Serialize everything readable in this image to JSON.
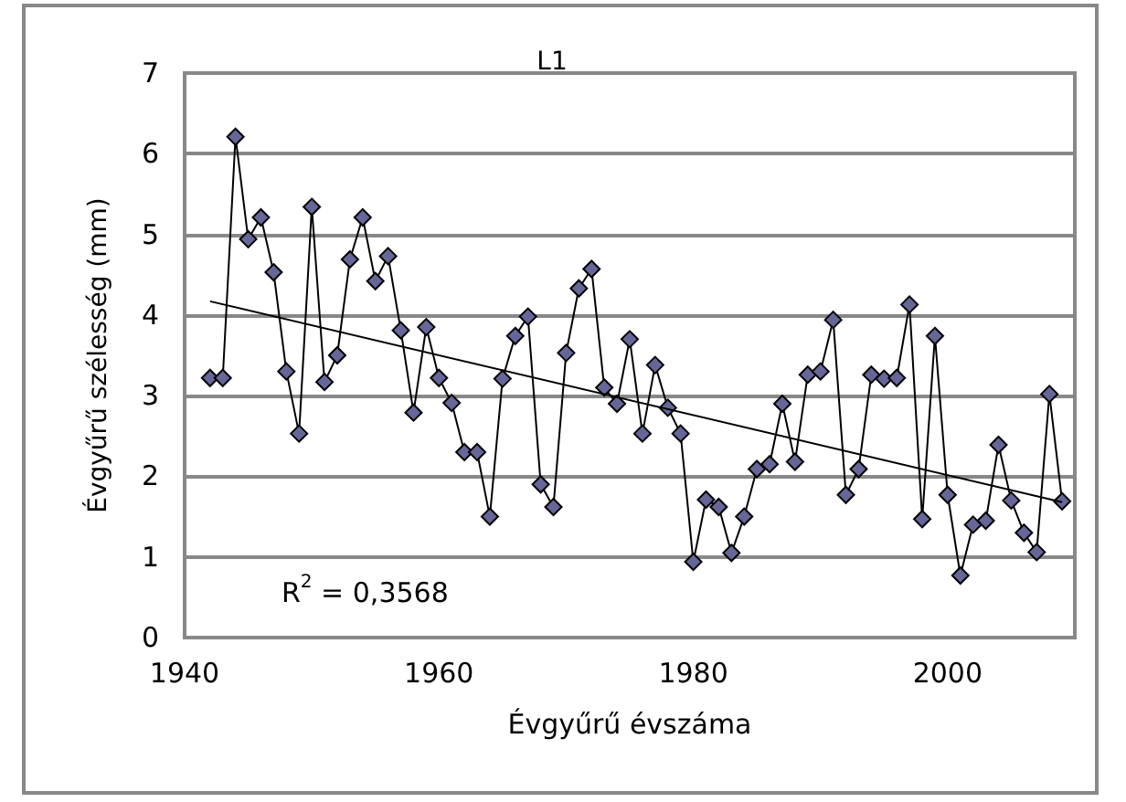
{
  "chart_data": {
    "type": "line",
    "title": "L1",
    "xlabel": "Évgyűrű évszáma",
    "ylabel": "Évgyűrű szélesség (mm)",
    "x": [
      1942,
      1943,
      1944,
      1945,
      1946,
      1947,
      1948,
      1949,
      1950,
      1951,
      1952,
      1953,
      1954,
      1955,
      1956,
      1957,
      1958,
      1959,
      1960,
      1961,
      1962,
      1963,
      1964,
      1965,
      1966,
      1967,
      1968,
      1969,
      1970,
      1971,
      1972,
      1973,
      1974,
      1975,
      1976,
      1977,
      1978,
      1979,
      1980,
      1981,
      1982,
      1983,
      1984,
      1985,
      1986,
      1987,
      1988,
      1989,
      1990,
      1991,
      1992,
      1993,
      1994,
      1995,
      1996,
      1997,
      1998,
      1999,
      2000,
      2001,
      2002,
      2003,
      2004,
      2005,
      2006,
      2007,
      2008,
      2009
    ],
    "series": [
      {
        "color": "#666699",
        "marker": "diamond",
        "values": [
          3.22,
          3.22,
          6.21,
          4.94,
          5.21,
          4.53,
          3.3,
          2.53,
          5.34,
          3.17,
          3.5,
          4.69,
          5.21,
          4.42,
          4.73,
          3.81,
          2.79,
          3.85,
          3.22,
          2.91,
          2.3,
          2.3,
          1.5,
          3.21,
          3.74,
          3.98,
          1.9,
          1.62,
          3.53,
          4.33,
          4.57,
          3.1,
          2.9,
          3.7,
          2.53,
          3.38,
          2.85,
          2.53,
          0.94,
          1.71,
          1.62,
          1.05,
          1.5,
          2.09,
          2.15,
          2.9,
          2.18,
          3.26,
          3.3,
          3.94,
          1.77,
          2.09,
          3.26,
          3.21,
          3.22,
          4.13,
          1.47,
          3.74,
          1.77,
          0.77,
          1.4,
          1.45,
          2.39,
          1.7,
          1.3,
          1.06,
          3.02,
          1.69
        ]
      },
      {
        "type": "line",
        "color": "#000000",
        "marker": "none",
        "x": [
          1942,
          2009
        ],
        "values": [
          4.17,
          1.68
        ]
      }
    ],
    "annotations": [
      "R$^{2}$ = 0,3568"
    ],
    "xlim": [
      1940,
      2010
    ],
    "xticks": [
      1940,
      1960,
      1980,
      2000
    ],
    "ylim": [
      0,
      7
    ],
    "yticks": [
      0,
      1,
      2,
      3,
      4,
      5,
      6,
      7
    ],
    "grid": "y",
    "line_style": "solid"
  }
}
